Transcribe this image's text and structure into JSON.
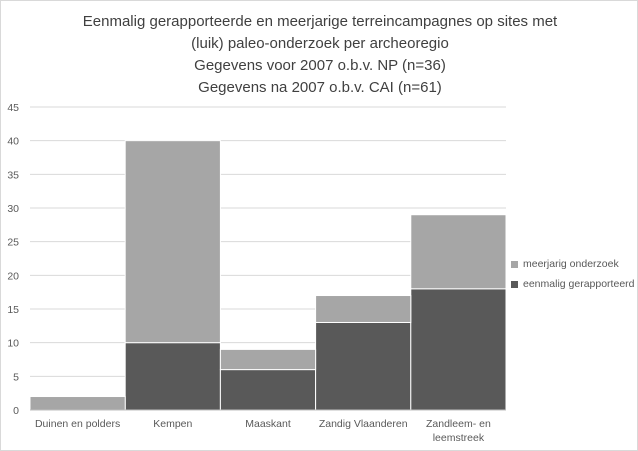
{
  "chart_data": {
    "type": "bar",
    "stacked": true,
    "title_lines": [
      "Eenmalig gerapporteerde en meerjarige terreincampagnes op sites met",
      "(luik) paleo-onderzoek  per archeoregio",
      "Gegevens voor 2007 o.b.v. NP (n=36)",
      "Gegevens na 2007 o.b.v. CAI (n=61)"
    ],
    "categories": [
      [
        "Duinen en polders"
      ],
      [
        "Kempen"
      ],
      [
        "Maaskant"
      ],
      [
        "Zandig Vlaanderen"
      ],
      [
        "Zandleem- en",
        "leemstreek"
      ]
    ],
    "series": [
      {
        "name": "eenmalig gerapporteerd",
        "color": "#595959",
        "values": [
          0,
          10,
          6,
          13,
          18
        ]
      },
      {
        "name": "meerjarig onderzoek",
        "color": "#a6a6a6",
        "values": [
          2,
          30,
          3,
          4,
          11
        ]
      }
    ],
    "ylim": [
      0,
      45
    ],
    "yticks": [
      0,
      5,
      10,
      15,
      20,
      25,
      30,
      35,
      40,
      45
    ],
    "grid": true,
    "legend_position": "right"
  }
}
